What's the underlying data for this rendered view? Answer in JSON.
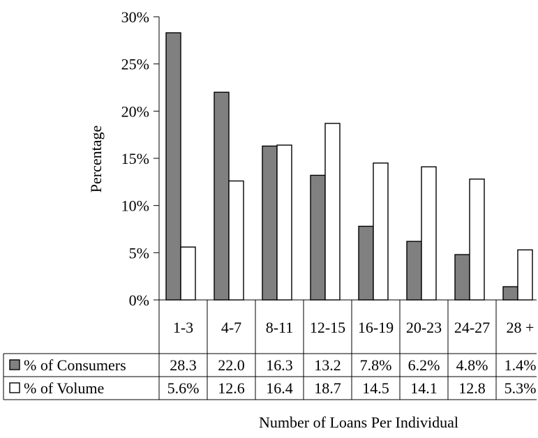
{
  "chart_data": {
    "type": "bar",
    "ylabel": "Percentage",
    "xlabel": "Number of Loans Per Individual",
    "ylim": [
      0,
      30
    ],
    "yticks": [
      "0%",
      "5%",
      "10%",
      "15%",
      "20%",
      "25%",
      "30%"
    ],
    "categories": [
      "1-3",
      "4-7",
      "8-11",
      "12-15",
      "16-19",
      "20-23",
      "24-27",
      "28 +"
    ],
    "series": [
      {
        "name": "% of Consumers",
        "values": [
          28.3,
          22.0,
          16.3,
          13.2,
          7.8,
          6.2,
          4.8,
          1.4
        ],
        "labels": [
          "28.3",
          "22.0",
          "16.3",
          "13.2",
          "7.8%",
          "6.2%",
          "4.8%",
          "1.4%"
        ],
        "color": "#808080"
      },
      {
        "name": "% of Volume",
        "values": [
          5.6,
          12.6,
          16.4,
          18.7,
          14.5,
          14.1,
          12.8,
          5.3
        ],
        "labels": [
          "5.6%",
          "12.6",
          "16.4",
          "18.7",
          "14.5",
          "14.1",
          "12.8",
          "5.3%"
        ],
        "color": "#ffffff"
      }
    ],
    "legend": "data-table-rows",
    "grid": false
  }
}
